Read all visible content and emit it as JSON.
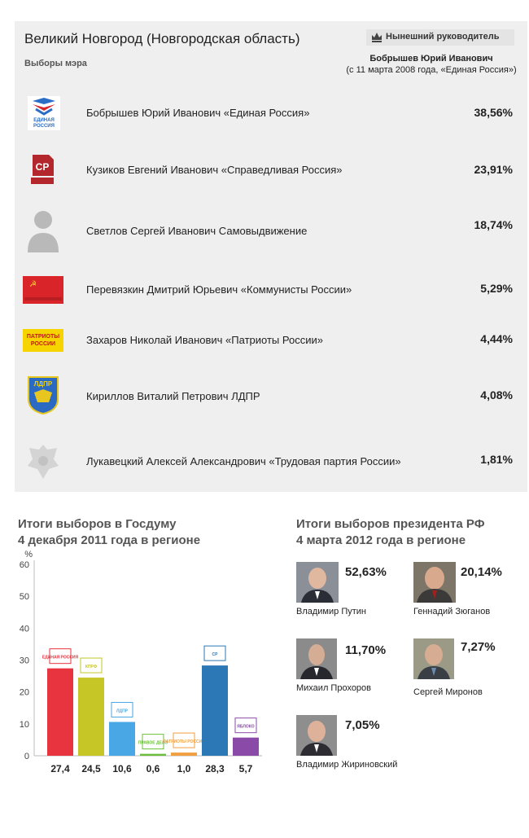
{
  "header": {
    "title": "Великий Новгород (Новгородская область)",
    "subtitle": "Выборы мэра",
    "leader_label": "Нынешний руководитель",
    "leader_name": "Бобрышев Юрий Иванович",
    "leader_since": "(с 11 марта 2008 года, «Единая Россия»)"
  },
  "candidates": [
    {
      "name": "Бобрышев Юрий Иванович «Единая Россия»",
      "pct": "38,56%",
      "logo": "united-russia-logo"
    },
    {
      "name": "Кузиков Евгений Иванович «Справедливая Россия»",
      "pct": "23,91%",
      "logo": "just-russia-logo"
    },
    {
      "name": "Светлов Сергей Иванович  Самовыдвижение",
      "pct": "18,74%",
      "logo": "person-silhouette-icon"
    },
    {
      "name": "Перевязкин Дмитрий Юрьевич «Коммунисты России»",
      "pct": "5,29%",
      "logo": "communists-of-russia-flag"
    },
    {
      "name": "Захаров Николай Иванович «Патриоты России»",
      "pct": "4,44%",
      "logo": "patriots-of-russia-logo"
    },
    {
      "name": "Кириллов Виталий Петрович ЛДПР",
      "pct": "4,08%",
      "logo": "ldpr-logo"
    },
    {
      "name": "Лукавецкий Алексей Александрович «Трудовая партия России»",
      "pct": "1,81%",
      "logo": "coat-of-arms-icon"
    }
  ],
  "duma": {
    "title_line1": "Итоги выборов в Госдуму",
    "title_line2": "4 декабря 2011 года в регионе"
  },
  "president": {
    "title_line1": "Итоги выборов президента РФ",
    "title_line2": "4 марта 2012 года в регионе",
    "results": [
      {
        "name": "Владимир Путин",
        "pct": "52,63%"
      },
      {
        "name": "Геннадий Зюганов",
        "pct": "20,14%"
      },
      {
        "name": "Михаил Прохоров",
        "pct": "11,70%"
      },
      {
        "name": "Сергей Миронов",
        "pct": "7,27%"
      },
      {
        "name": "Владимир Жириновский",
        "pct": "7,05%"
      }
    ]
  },
  "chart_data": {
    "type": "bar",
    "title": "Итоги выборов в Госдуму 4 декабря 2011 года в регионе",
    "ylabel": "%",
    "ylim": [
      0,
      60
    ],
    "yticks": [
      0,
      10,
      20,
      30,
      40,
      50,
      60
    ],
    "grid": false,
    "categories": [
      "Единая Россия",
      "КПРФ",
      "ЛДПР",
      "Правое дело",
      "Патриоты России",
      "Справедливая Россия",
      "Яблоко"
    ],
    "values": [
      27.4,
      24.5,
      10.6,
      0.6,
      1.0,
      28.3,
      5.7
    ],
    "value_labels": [
      "27,4",
      "24,5",
      "10,6",
      "0,6",
      "1,0",
      "28,3",
      "5,7"
    ],
    "colors": [
      "#e8343f",
      "#c6c627",
      "#4aa7e6",
      "#6bbf3a",
      "#f0a040",
      "#2c77b5",
      "#8a4aa8"
    ],
    "logo_labels": [
      "ЕДИНАЯ РОССИЯ",
      "КПРФ",
      "ЛДПР",
      "ПРАВОЕ ДЕЛО",
      "ПАТРИОТЫ РОССИИ",
      "СР",
      "ЯБЛОКО"
    ]
  }
}
